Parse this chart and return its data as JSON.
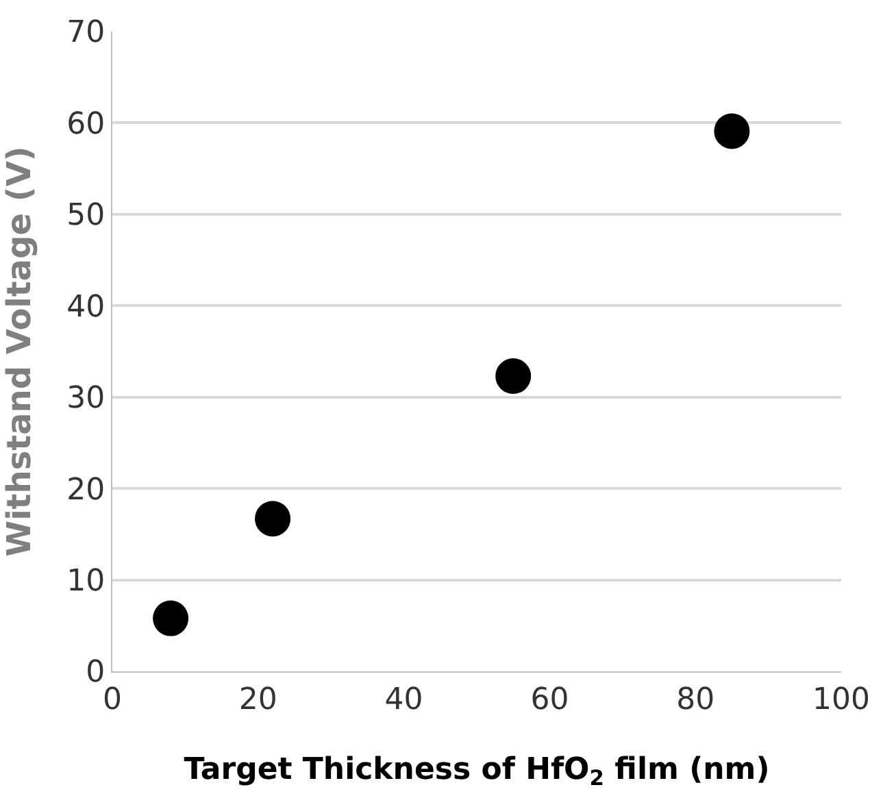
{
  "chart_data": {
    "type": "scatter",
    "xlabel": "Target Thickness of HfO$_{2}$ film (nm)",
    "ylabel": "Withstand Voltage (V)",
    "x": [
      8,
      22,
      55,
      85
    ],
    "series": [
      {
        "color": "#000000",
        "values": [
          5.8,
          16.7,
          32.3,
          59.1
        ]
      }
    ],
    "xlim": [
      0,
      100
    ],
    "xticks": [
      0,
      20,
      40,
      60,
      80,
      100
    ],
    "ylim": [
      0,
      70
    ],
    "yticks": [
      0,
      10,
      20,
      30,
      40,
      50,
      60,
      70
    ],
    "grid": "y",
    "marker": "circle"
  }
}
